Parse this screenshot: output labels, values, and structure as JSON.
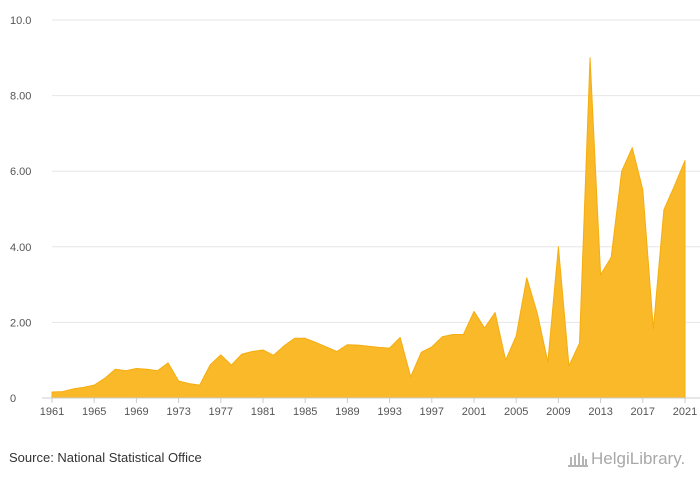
{
  "source": "Source: National Statistical Office",
  "logo": {
    "text": "HelgiLibrary."
  },
  "colors": {
    "area": "#f9b929",
    "area_line": "#f5ad0f",
    "grid": "#e6e6e6",
    "axis": "#cccccc"
  },
  "chart_data": {
    "type": "area",
    "title": "",
    "xlabel": "",
    "ylabel": "",
    "ylim": [
      0,
      10
    ],
    "xlim": [
      1961,
      2021
    ],
    "grid": true,
    "y_ticks": [
      {
        "value": 0,
        "label": "0"
      },
      {
        "value": 2,
        "label": "2.00"
      },
      {
        "value": 4,
        "label": "4.00"
      },
      {
        "value": 6,
        "label": "6.00"
      },
      {
        "value": 8,
        "label": "8.00"
      },
      {
        "value": 10,
        "label": "10.0"
      }
    ],
    "x_ticks": [
      1961,
      1965,
      1969,
      1973,
      1977,
      1981,
      1985,
      1989,
      1993,
      1997,
      2001,
      2005,
      2009,
      2013,
      2017,
      2021
    ],
    "x": [
      1961,
      1962,
      1963,
      1964,
      1965,
      1966,
      1967,
      1968,
      1969,
      1970,
      1971,
      1972,
      1973,
      1974,
      1975,
      1976,
      1977,
      1978,
      1979,
      1980,
      1981,
      1982,
      1983,
      1984,
      1985,
      1986,
      1987,
      1988,
      1989,
      1990,
      1991,
      1992,
      1993,
      1994,
      1995,
      1996,
      1997,
      1998,
      1999,
      2000,
      2001,
      2002,
      2003,
      2004,
      2005,
      2006,
      2007,
      2008,
      2009,
      2010,
      2011,
      2012,
      2013,
      2014,
      2015,
      2016,
      2017,
      2018,
      2019,
      2020,
      2021
    ],
    "values": [
      0.16,
      0.17,
      0.24,
      0.28,
      0.34,
      0.52,
      0.76,
      0.72,
      0.78,
      0.76,
      0.72,
      0.93,
      0.45,
      0.38,
      0.34,
      0.88,
      1.14,
      0.87,
      1.16,
      1.23,
      1.27,
      1.13,
      1.38,
      1.58,
      1.58,
      1.47,
      1.35,
      1.23,
      1.41,
      1.4,
      1.37,
      1.34,
      1.32,
      1.6,
      0.56,
      1.21,
      1.35,
      1.62,
      1.68,
      1.68,
      2.29,
      1.85,
      2.26,
      1.0,
      1.64,
      3.18,
      2.24,
      0.95,
      4.0,
      0.85,
      1.45,
      9.0,
      3.26,
      3.72,
      6.0,
      6.62,
      5.51,
      1.83,
      4.98,
      5.61,
      6.28
    ]
  }
}
